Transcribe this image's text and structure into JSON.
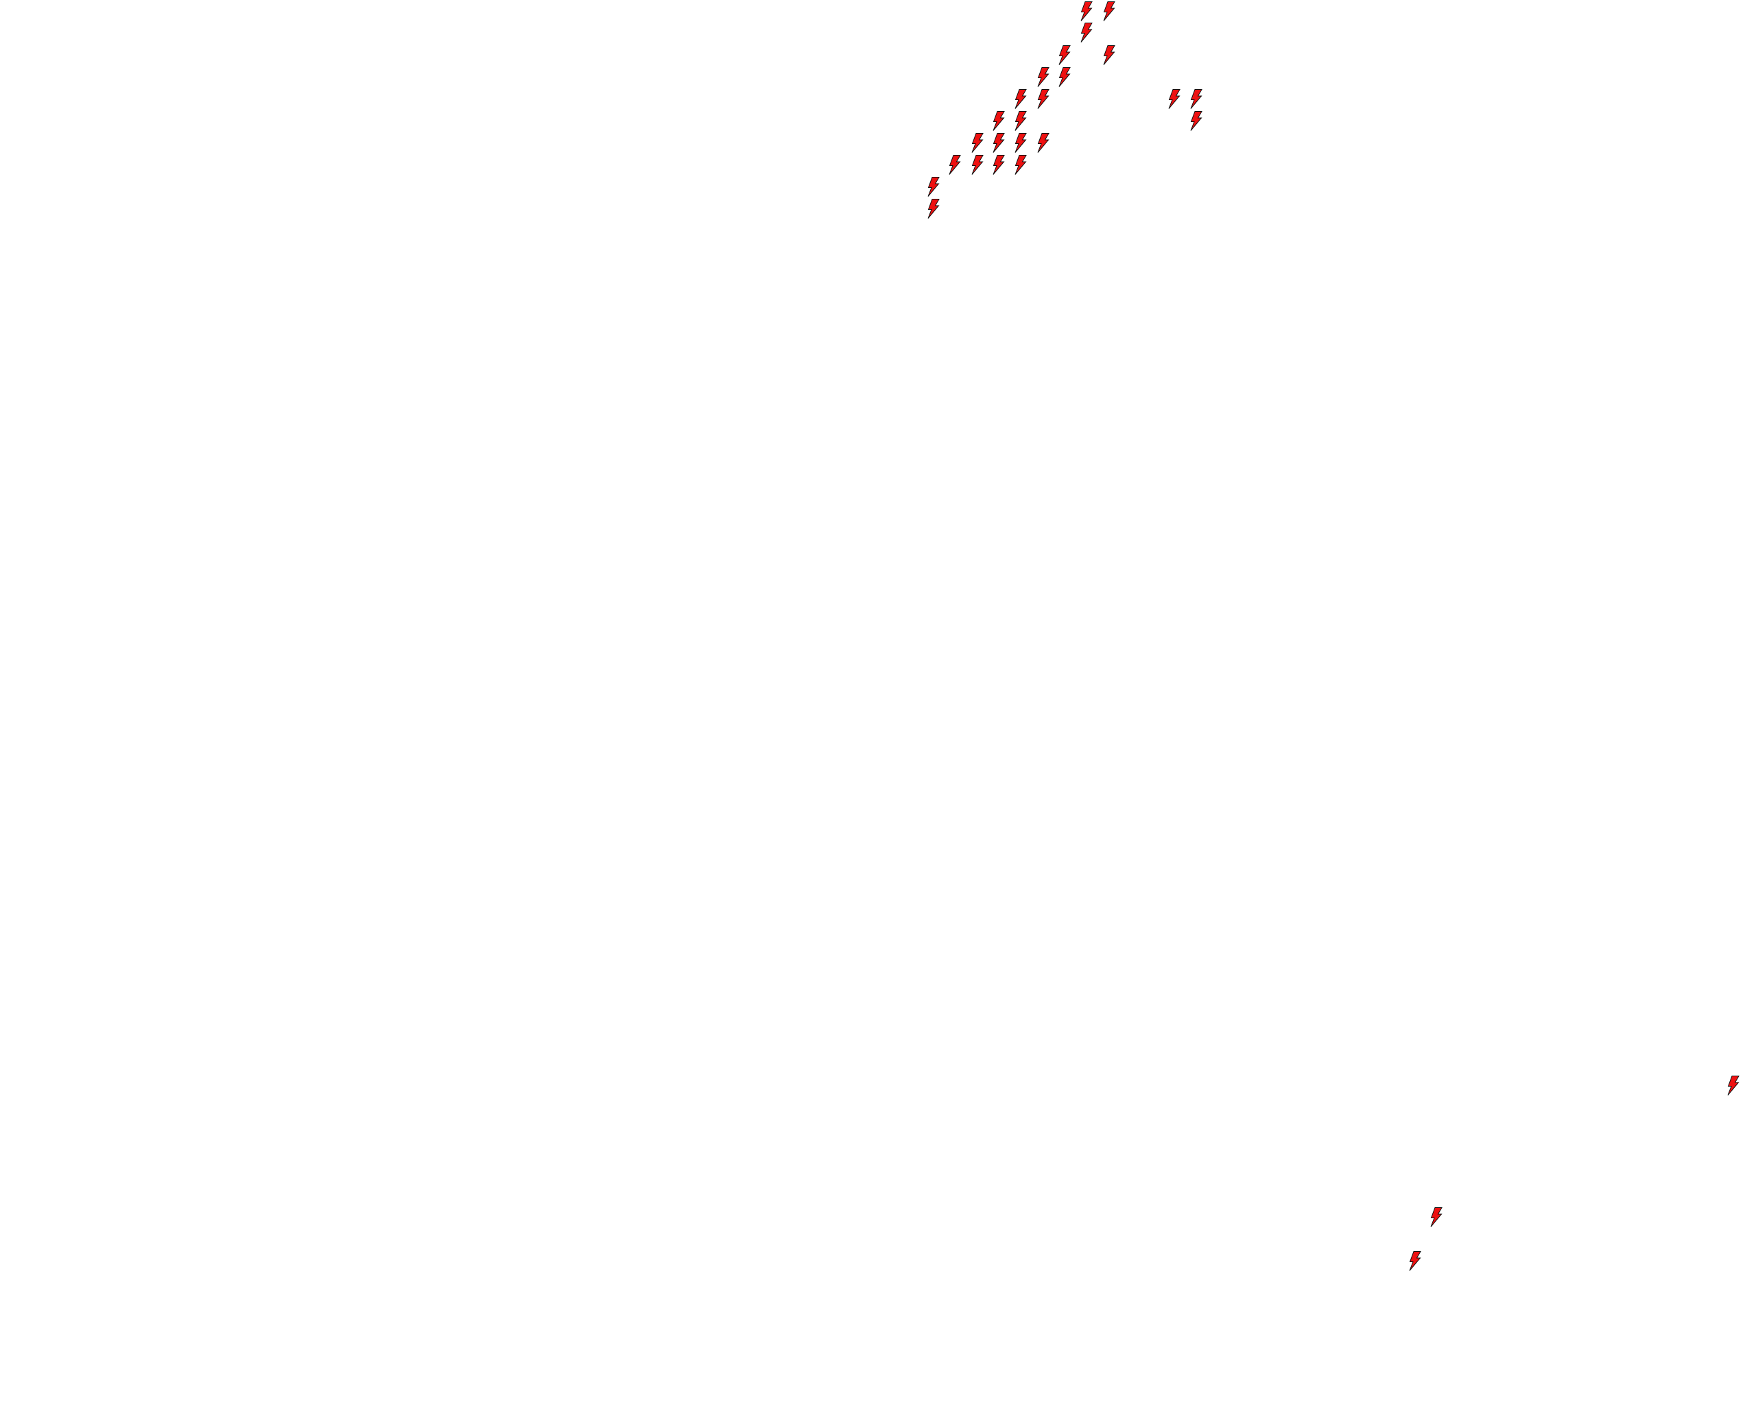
{
  "map": {
    "background_color": "#ffffff",
    "layer": {
      "marker_icon": "lightning-bolt-icon",
      "marker_fill": "#ee1111",
      "marker_stroke": "#111111",
      "marker_count": 27
    }
  }
}
